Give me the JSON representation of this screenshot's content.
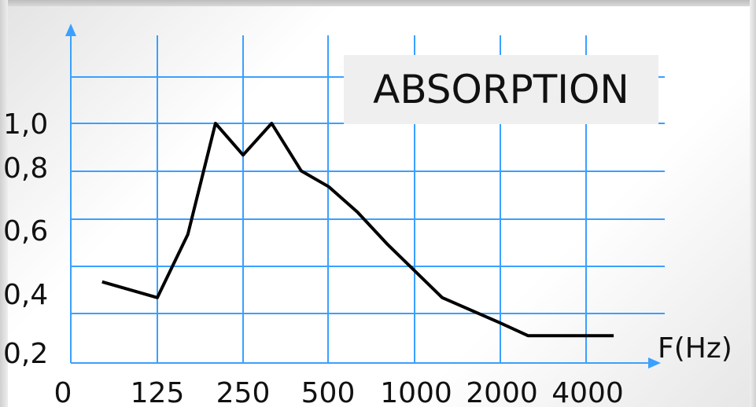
{
  "chart_data": {
    "type": "line",
    "title": "ABSORPTION",
    "xlabel": "F(Hz)",
    "ylabel": "",
    "x_tick_labels": [
      "0",
      "125",
      "250",
      "500",
      "1000",
      "2000",
      "4000"
    ],
    "y_tick_labels": [
      "0,2",
      "0,4",
      "0,6",
      "0,8",
      "1,0"
    ],
    "y_tick_values": [
      0.2,
      0.4,
      0.6,
      0.8,
      1.0
    ],
    "ylim": [
      0.2,
      1.2
    ],
    "grid": true,
    "axis_color": "#3aa0ff",
    "line_color": "#000000",
    "series": [
      {
        "x": [
          80,
          125,
          160,
          200,
          250,
          315,
          400,
          500,
          630,
          800,
          1250,
          2000,
          2500,
          5000
        ],
        "values": [
          0.5,
          0.45,
          0.65,
          1.0,
          0.9,
          1.0,
          0.85,
          0.8,
          0.72,
          0.62,
          0.45,
          0.37,
          0.33,
          0.33
        ]
      }
    ]
  }
}
